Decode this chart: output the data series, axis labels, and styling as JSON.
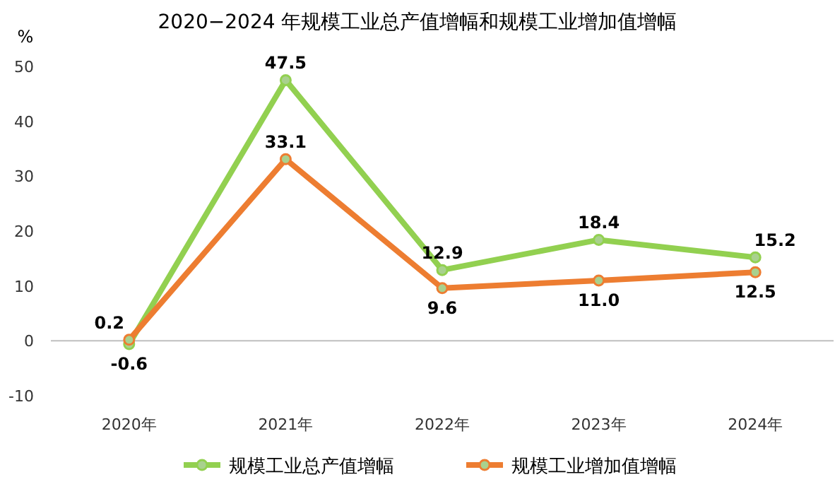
{
  "chart_data": {
    "type": "line",
    "title": "2020−2024 年规模工业总产值增幅和规模工业增加值增幅",
    "ylabel": "%",
    "categories": [
      "2020年",
      "2021年",
      "2022年",
      "2023年",
      "2024年"
    ],
    "series": [
      {
        "name": "规模工业总产值增幅",
        "color": "#92d050",
        "values": [
          -0.6,
          47.5,
          12.9,
          18.4,
          15.2
        ],
        "value_labels": [
          "-0.6",
          "47.5",
          "12.9",
          "18.4",
          "15.2"
        ]
      },
      {
        "name": "规模工业增加值增幅",
        "color": "#ed7d31",
        "values": [
          0.2,
          33.1,
          9.6,
          11.0,
          12.5
        ],
        "value_labels": [
          "0.2",
          "33.1",
          "9.6",
          "11.0",
          "12.5"
        ]
      }
    ],
    "ylim": [
      -10,
      50
    ],
    "yticks": [
      -10,
      0,
      10,
      20,
      30,
      40,
      50
    ],
    "legend": "bottom",
    "marker": "circle",
    "line_style": "solid"
  }
}
